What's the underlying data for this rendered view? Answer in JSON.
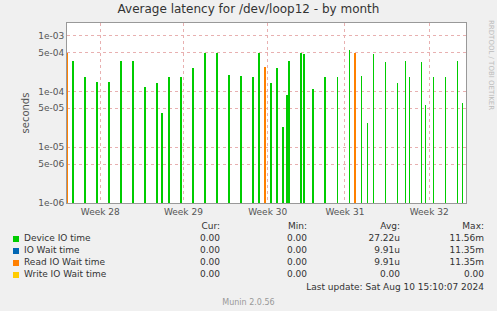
{
  "chart_data": {
    "type": "bar",
    "title": "Average latency for /dev/loop12 - by month",
    "y_label": "seconds",
    "log": "y",
    "grid": true,
    "xlim": [
      0,
      33.6
    ],
    "xticks": [
      {
        "value": 2.8,
        "label": "Week 28"
      },
      {
        "value": 9.8,
        "label": "Week 29"
      },
      {
        "value": 16.9,
        "label": "Week 30"
      },
      {
        "value": 23.4,
        "label": "Week 31"
      },
      {
        "value": 30.5,
        "label": "Week 32"
      }
    ],
    "ylim": [
      1e-06,
      0.0017
    ],
    "yticks": [
      {
        "value": 1e-06,
        "label": "1e-06"
      },
      {
        "value": 5e-06,
        "label": "5e-06"
      },
      {
        "value": 1e-05,
        "label": "1e-05"
      },
      {
        "value": 5e-05,
        "label": "5e-05"
      },
      {
        "value": 0.0001,
        "label": "1e-04"
      },
      {
        "value": 0.0005,
        "label": "5e-04"
      },
      {
        "value": 0.001,
        "label": "1e-03"
      }
    ],
    "series": [
      {
        "name": "Device IO time",
        "color": "#00cc00",
        "x": [
          0.51,
          1.52,
          2.53,
          3.54,
          4.55,
          5.56,
          6.58,
          7.59,
          8.01,
          8.6,
          9.61,
          10.62,
          11.64,
          12.65,
          13.66,
          14.67,
          15.68,
          16.19,
          17.2,
          17.71,
          18.21,
          18.55,
          18.72,
          19.73,
          19.98,
          20.74,
          21.75,
          22.77,
          23.78,
          24.79,
          25.3,
          25.8,
          26.81,
          27.83,
          28.5,
          28.84,
          29.85,
          30.19,
          30.86,
          31.87,
          32.88,
          33.31
        ],
        "values": [
          0.00035,
          0.00018,
          0.00015,
          0.00015,
          0.00035,
          0.00035,
          0.00012,
          0.00014,
          4.2e-05,
          0.00018,
          0.00018,
          0.00027,
          0.0005,
          0.0005,
          0.0002,
          0.00019,
          0.00018,
          0.0005,
          0.00014,
          0.00026,
          2.3e-05,
          8.5e-05,
          0.00035,
          0.0005,
          0.00048,
          0.00011,
          0.00018,
          0.00018,
          0.00056,
          0.00019,
          2.7e-05,
          0.00048,
          0.00034,
          0.00014,
          0.00035,
          0.00018,
          0.00034,
          5.8e-05,
          0.00018,
          0.00018,
          0.00035,
          6.2e-05
        ]
      },
      {
        "name": "IO Wait time",
        "color": "#0066b3",
        "x": [
          0.0,
          1.52,
          6.58,
          7.59,
          8.6,
          11.64,
          12.65,
          13.66,
          14.67,
          16.69,
          18.21,
          19.73,
          20.74,
          22.77,
          23.78,
          24.28,
          24.79,
          25.3,
          26.81,
          28.84,
          29.85,
          30.86,
          32.88,
          33.31
        ],
        "values": [
          0.0005,
          2e-06,
          5e-05,
          5e-05,
          2e-06,
          0.00016,
          0.00015,
          0.00015,
          2e-06,
          0.00028,
          1.2e-05,
          0.0002,
          5e-05,
          2e-06,
          0.00016,
          0.0005,
          0.00018,
          2.6e-05,
          0.00016,
          0.00012,
          0.00012,
          7e-05,
          7e-05,
          5e-05
        ]
      },
      {
        "name": "Read IO Wait time",
        "color": "#ff8000",
        "x": [
          0.0,
          1.52,
          6.58,
          7.59,
          8.6,
          11.64,
          12.65,
          13.66,
          14.67,
          16.69,
          18.21,
          19.73,
          20.74,
          22.77,
          23.78,
          24.28,
          24.79,
          25.3,
          26.81,
          28.84,
          29.85,
          30.86,
          32.88,
          33.31
        ],
        "values": [
          0.0005,
          2e-06,
          5e-05,
          5e-05,
          2e-06,
          0.00016,
          0.00015,
          0.00015,
          2e-06,
          0.00028,
          1.2e-05,
          0.0002,
          5e-05,
          2e-06,
          0.00016,
          0.0005,
          0.00018,
          2.6e-05,
          0.00016,
          0.00012,
          0.00012,
          7e-05,
          7e-05,
          5e-05
        ]
      },
      {
        "name": "Write IO Wait time",
        "color": "#ffcc00",
        "x": [],
        "values": []
      }
    ],
    "legend_table": {
      "headers": [
        "Cur:",
        "Min:",
        "Avg:",
        "Max:"
      ],
      "rows": [
        [
          "0.00",
          "0.00",
          "27.22u",
          "11.56m"
        ],
        [
          "0.00",
          "0.00",
          "9.91u",
          "11.35m"
        ],
        [
          "0.00",
          "0.00",
          "9.91u",
          "11.35m"
        ],
        [
          "0.00",
          "0.00",
          "0.00",
          "0.00"
        ]
      ]
    },
    "side_text": "RRDTOOL / TOBI OETIKER",
    "footer": [
      "Last update: Sat Aug 10 15:10:07 2024",
      "Munin 2.0.56"
    ]
  }
}
